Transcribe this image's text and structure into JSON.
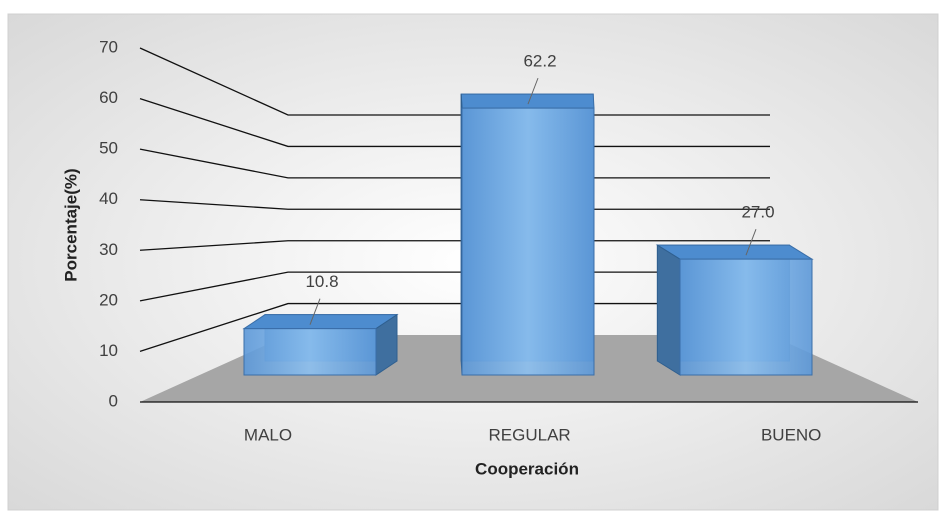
{
  "chart_data": {
    "type": "bar3d",
    "y_axis_label": "Porcentaje(%)",
    "x_axis_label": "Cooperación",
    "categories": [
      "MALO",
      "REGULAR",
      "BUENO"
    ],
    "values": [
      10.8,
      62.2,
      27.0
    ],
    "value_labels": [
      "10.8",
      "62.2",
      "27.0"
    ],
    "color": "#6ea9e4",
    "ylim": [
      0,
      70
    ],
    "yticks": [
      0,
      10,
      20,
      30,
      40,
      50,
      60,
      70
    ],
    "grid": true
  }
}
